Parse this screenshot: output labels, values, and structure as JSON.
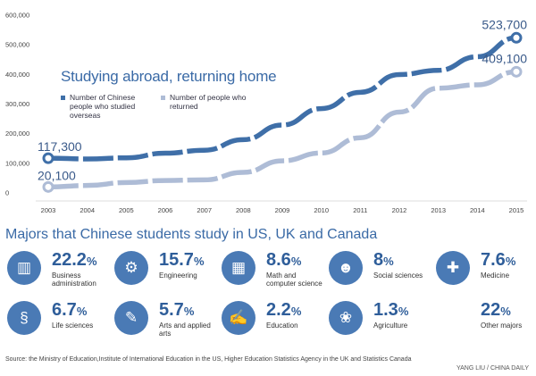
{
  "chart_data": {
    "type": "line",
    "title": "Studying abroad, returning home",
    "x": [
      2003,
      2004,
      2005,
      2006,
      2007,
      2008,
      2009,
      2010,
      2011,
      2012,
      2013,
      2014,
      2015
    ],
    "x_labels": [
      "2003",
      "2004",
      "2005",
      "2006",
      "2007",
      "2008",
      "2009",
      "2010",
      "2011",
      "2012",
      "2013",
      "2014",
      "2015"
    ],
    "y_ticks": [
      0,
      100000,
      200000,
      300000,
      400000,
      500000,
      600000
    ],
    "y_tick_labels": [
      "0",
      "100,000",
      "200,000",
      "300,000",
      "400,000",
      "500,000",
      "600,000"
    ],
    "ylim": [
      0,
      600000
    ],
    "series": [
      {
        "name": "Number of Chinese people who studied overseas",
        "color": "#3f6fa8",
        "values": [
          117300,
          114700,
          118500,
          134000,
          144000,
          179800,
          229300,
          284700,
          339700,
          399600,
          413900,
          459800,
          523700
        ],
        "labels": [
          "117,300",
          "523,700"
        ]
      },
      {
        "name": "Number of people who returned",
        "color": "#aebcd6",
        "values": [
          20100,
          25100,
          35000,
          42000,
          44000,
          69300,
          108300,
          134800,
          186200,
          272900,
          353500,
          364800,
          409100
        ],
        "labels": [
          "20,100",
          "409,100"
        ]
      }
    ],
    "grid": false,
    "legend": "top-left"
  },
  "legend": [
    {
      "text": "Number of Chinese people who studied overseas",
      "color": "#3f6fa8"
    },
    {
      "text": "Number of people who returned",
      "color": "#aebcd6"
    }
  ],
  "majors_title": "Majors that Chinese students study in US, UK and Canada",
  "majors": [
    {
      "value": "22.2",
      "pct": "%",
      "name": "Business administration",
      "icon": "chart-icon",
      "glyph": "▥"
    },
    {
      "value": "15.7",
      "pct": "%",
      "name": "Engineering",
      "icon": "gears-icon",
      "glyph": "⚙"
    },
    {
      "value": "8.6",
      "pct": "%",
      "name": "Math and computer science",
      "icon": "calculator-icon",
      "glyph": "▦"
    },
    {
      "value": "8",
      "pct": "%",
      "name": "Social sciences",
      "icon": "people-icon",
      "glyph": "☻"
    },
    {
      "value": "7.6",
      "pct": "%",
      "name": "Medicine",
      "icon": "syringe-icon",
      "glyph": "✚"
    },
    {
      "value": "6.7",
      "pct": "%",
      "name": "Life sciences",
      "icon": "dna-icon",
      "glyph": "§"
    },
    {
      "value": "5.7",
      "pct": "%",
      "name": "Arts and applied arts",
      "icon": "palette-icon",
      "glyph": "✎"
    },
    {
      "value": "2.2",
      "pct": "%",
      "name": "Education",
      "icon": "teacher-icon",
      "glyph": "✍"
    },
    {
      "value": "1.3",
      "pct": "%",
      "name": "Agriculture",
      "icon": "field-icon",
      "glyph": "❀"
    },
    {
      "value": "22",
      "pct": "%",
      "name": "Other majors",
      "icon": "",
      "glyph": ""
    }
  ],
  "source": "Source: the Ministry of Education,Institute of International Education in the US, Higher Education Statistics Agency in the UK and Statistics Canada",
  "credit": "YANG LIU / CHINA DAILY"
}
